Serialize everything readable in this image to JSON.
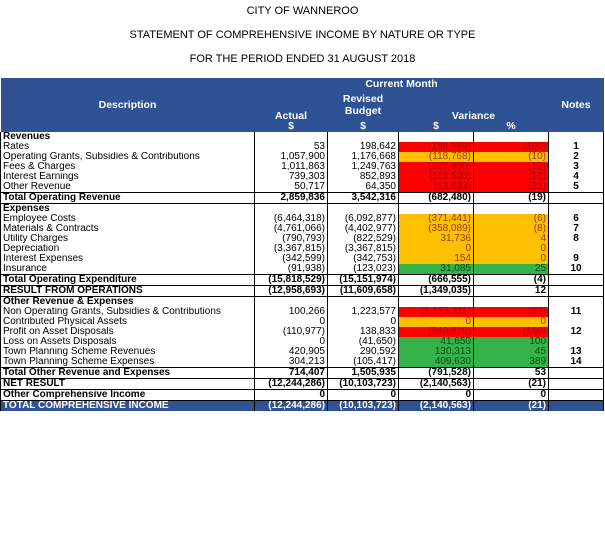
{
  "header": {
    "line1": "CITY OF WANNEROO",
    "line2": "STATEMENT OF COMPREHENSIVE INCOME BY NATURE OR TYPE",
    "line3": "FOR THE PERIOD ENDED 31 AUGUST 2018"
  },
  "columns": {
    "current_month": "Current Month",
    "description": "Description",
    "actual": "Actual",
    "revised_budget": "Revised Budget",
    "variance": "Variance",
    "notes": "Notes",
    "dollar": "$",
    "percent": "%"
  },
  "rows": [
    {
      "type": "section",
      "desc": "Revenues"
    },
    {
      "type": "line",
      "desc": "Rates",
      "actual": "53",
      "budget": "198,642",
      "var": "(198,589)",
      "pct": "(100)",
      "color": "red",
      "note": "1"
    },
    {
      "type": "line",
      "desc": "Operating Grants, Subsidies & Contributions",
      "actual": "1,057,900",
      "budget": "1,176,668",
      "var": "(118,768)",
      "pct": "(10)",
      "color": "amb",
      "note": "2"
    },
    {
      "type": "line",
      "desc": "Fees & Charges",
      "actual": "1,011,863",
      "budget": "1,249,763",
      "var": "(237,900)",
      "pct": "(19)",
      "color": "red",
      "note": "3"
    },
    {
      "type": "line",
      "desc": "Interest Earnings",
      "actual": "739,303",
      "budget": "852,893",
      "var": "(113,590)",
      "pct": "(13)",
      "color": "red",
      "note": "4"
    },
    {
      "type": "line",
      "desc": "Other Revenue",
      "actual": "50,717",
      "budget": "64,350",
      "var": "(13,633)",
      "pct": "(21)",
      "color": "red",
      "note": "5"
    },
    {
      "type": "total",
      "desc": "Total Operating Revenue",
      "actual": "2,859,836",
      "budget": "3,542,316",
      "var": "(682,480)",
      "pct": "(19)"
    },
    {
      "type": "section",
      "desc": "Expenses"
    },
    {
      "type": "line",
      "desc": "Employee Costs",
      "actual": "(6,464,318)",
      "budget": "(6,092,877)",
      "var": "(371,441)",
      "pct": "(6)",
      "color": "amb",
      "note": "6"
    },
    {
      "type": "line",
      "desc": "Materials & Contracts",
      "actual": "(4,761,066)",
      "budget": "(4,402,977)",
      "var": "(358,089)",
      "pct": "(8)",
      "color": "amb",
      "note": "7"
    },
    {
      "type": "line",
      "desc": "Utility Charges",
      "actual": "(790,793)",
      "budget": "(822,529)",
      "var": "31,736",
      "pct": "4",
      "color": "amb",
      "note": "8"
    },
    {
      "type": "line",
      "desc": "Depreciation",
      "actual": "(3,367,815)",
      "budget": "(3,367,815)",
      "var": "0",
      "pct": "0",
      "color": "amb",
      "note": ""
    },
    {
      "type": "line",
      "desc": "Interest Expenses",
      "actual": "(342,599)",
      "budget": "(342,753)",
      "var": "154",
      "pct": "0",
      "color": "amb",
      "note": "9"
    },
    {
      "type": "line",
      "desc": "Insurance",
      "actual": "(91,938)",
      "budget": "(123,023)",
      "var": "31,085",
      "pct": "25",
      "color": "grn",
      "note": "10"
    },
    {
      "type": "total",
      "desc": "Total Operating Expenditure",
      "actual": "(15,818,529)",
      "budget": "(15,151,974)",
      "var": "(666,555)",
      "pct": "(4)"
    },
    {
      "type": "total",
      "desc": "RESULT FROM OPERATIONS",
      "actual": "(12,958,693)",
      "budget": "(11,609,658)",
      "var": "(1,349,035)",
      "pct": "12"
    },
    {
      "type": "section",
      "desc": "Other Revenue & Expenses"
    },
    {
      "type": "line",
      "desc": "Non Operating Grants, Subsidies & Contributions",
      "actual": "100,266",
      "budget": "1,223,577",
      "var": "(1,123,311)",
      "pct": "(92)",
      "color": "red",
      "note": "11"
    },
    {
      "type": "line",
      "desc": "Contributed Physical Assets",
      "actual": "0",
      "budget": "0",
      "var": "0",
      "pct": "0",
      "color": "amb",
      "note": ""
    },
    {
      "type": "line",
      "desc": "Profit on Asset Disposals",
      "actual": "(110,977)",
      "budget": "138,833",
      "var": "(249,810)",
      "pct": "(180)",
      "color": "red",
      "note": "12"
    },
    {
      "type": "line",
      "desc": "Loss on Assets Disposals",
      "actual": "0",
      "budget": "(41,650)",
      "var": "41,650",
      "pct": "100",
      "color": "grn",
      "note": ""
    },
    {
      "type": "line",
      "desc": "Town Planning Scheme Revenues",
      "actual": "420,905",
      "budget": "290,592",
      "var": "130,313",
      "pct": "45",
      "color": "grn",
      "note": "13"
    },
    {
      "type": "line",
      "desc": "Town Planning Scheme Expenses",
      "actual": "304,213",
      "budget": "(105,417)",
      "var": "409,630",
      "pct": "389",
      "color": "grn",
      "note": "14"
    },
    {
      "type": "total",
      "desc": "Total Other Revenue and Expenses",
      "actual": "714,407",
      "budget": "1,505,935",
      "var": "(791,528)",
      "pct": "53"
    },
    {
      "type": "total",
      "desc": "NET RESULT",
      "actual": "(12,244,286)",
      "budget": "(10,103,723)",
      "var": "(2,140,563)",
      "pct": "(21)"
    },
    {
      "type": "total",
      "desc": "Other Comprehensive Income",
      "actual": "0",
      "budget": "0",
      "var": "0",
      "pct": "0"
    },
    {
      "type": "final",
      "desc": "TOTAL COMPREHENSIVE INCOME",
      "actual": "(12,244,286)",
      "budget": "(10,103,723)",
      "var": "(2,140,563)",
      "pct": "(21)"
    }
  ]
}
